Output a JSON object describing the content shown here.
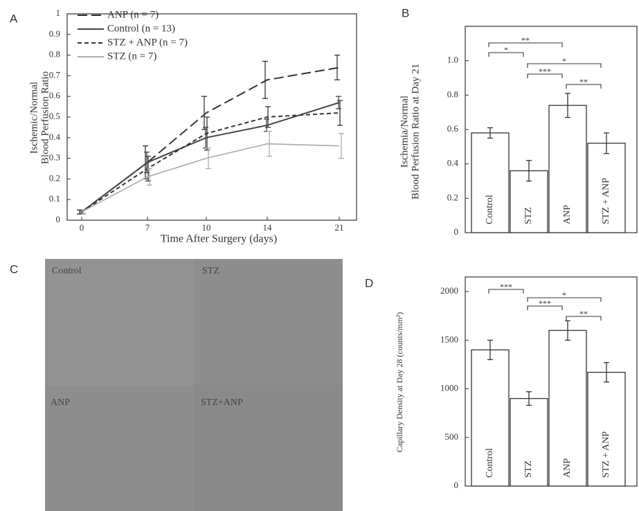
{
  "chart_data": [
    {
      "type": "line",
      "panel": "A",
      "y_label": [
        "Ischemic/Normal",
        "Blood Perfusion Ratio"
      ],
      "x_label": "Time After Surgery  (days)",
      "categories": [
        "0",
        "7",
        "10",
        "14",
        "21"
      ],
      "series": [
        {
          "name": "ANP (n = 7)",
          "color": "#333333",
          "linestyle": "long-dash",
          "values": [
            0.04,
            0.28,
            0.52,
            0.68,
            0.74
          ],
          "errors": [
            0.01,
            0.08,
            0.08,
            0.09,
            0.06
          ]
        },
        {
          "name": "Control (n = 13)",
          "color": "#444444",
          "linestyle": "solid",
          "values": [
            0.04,
            0.28,
            0.4,
            0.46,
            0.57
          ],
          "errors": [
            0.01,
            0.05,
            0.05,
            0.03,
            0.03
          ]
        },
        {
          "name": "STZ + ANP (n = 7)",
          "color": "#333333",
          "linestyle": "dashed",
          "values": [
            0.04,
            0.25,
            0.42,
            0.5,
            0.52
          ],
          "errors": [
            0.01,
            0.06,
            0.08,
            0.05,
            0.06
          ]
        },
        {
          "name": "STZ (n = 7)",
          "color": "#aaaaaa",
          "linestyle": "solid",
          "values": [
            0.04,
            0.21,
            0.3,
            0.37,
            0.36
          ],
          "errors": [
            0.01,
            0.04,
            0.05,
            0.06,
            0.06
          ]
        }
      ],
      "ylim": [
        0,
        1
      ],
      "yticks": [
        0,
        0.1,
        0.2,
        0.3,
        0.4,
        0.5,
        0.6,
        0.7,
        0.8,
        0.9,
        1
      ]
    },
    {
      "type": "bar",
      "panel": "B",
      "y_label": [
        "Ischemia/Normal",
        "Blood Perfusion Ratio at Day 21"
      ],
      "categories": [
        "Control",
        "STZ",
        "ANP",
        "STZ + ANP"
      ],
      "values": [
        0.58,
        0.36,
        0.74,
        0.52
      ],
      "errors": [
        0.03,
        0.06,
        0.07,
        0.06
      ],
      "color": "#ffffff",
      "annotations": [
        "**",
        "*",
        "*",
        "***",
        "**"
      ],
      "ylim": [
        0,
        1.2
      ],
      "yticks": [
        0,
        0.2,
        0.4,
        0.6,
        0.8,
        {
          "value": 1,
          "label": "1.0"
        }
      ]
    },
    {
      "type": "bar",
      "panel": "D",
      "y_label": [
        "Capillary Density at Day 28 (counts/mm²)"
      ],
      "categories": [
        "Control",
        "STZ",
        "ANP",
        "STZ + ANP"
      ],
      "values": [
        1400,
        900,
        1600,
        1170
      ],
      "errors": [
        100,
        70,
        100,
        100
      ],
      "color": "#ffffff",
      "annotations": [
        "***",
        "*",
        "***",
        "**"
      ],
      "ylim": [
        0,
        2150
      ],
      "yticks": [
        0,
        500,
        1000,
        1500,
        2000
      ]
    }
  ],
  "image_panel": {
    "panel": "C",
    "captions": [
      "Control",
      "STZ",
      "ANP",
      "STZ+ANP"
    ]
  }
}
